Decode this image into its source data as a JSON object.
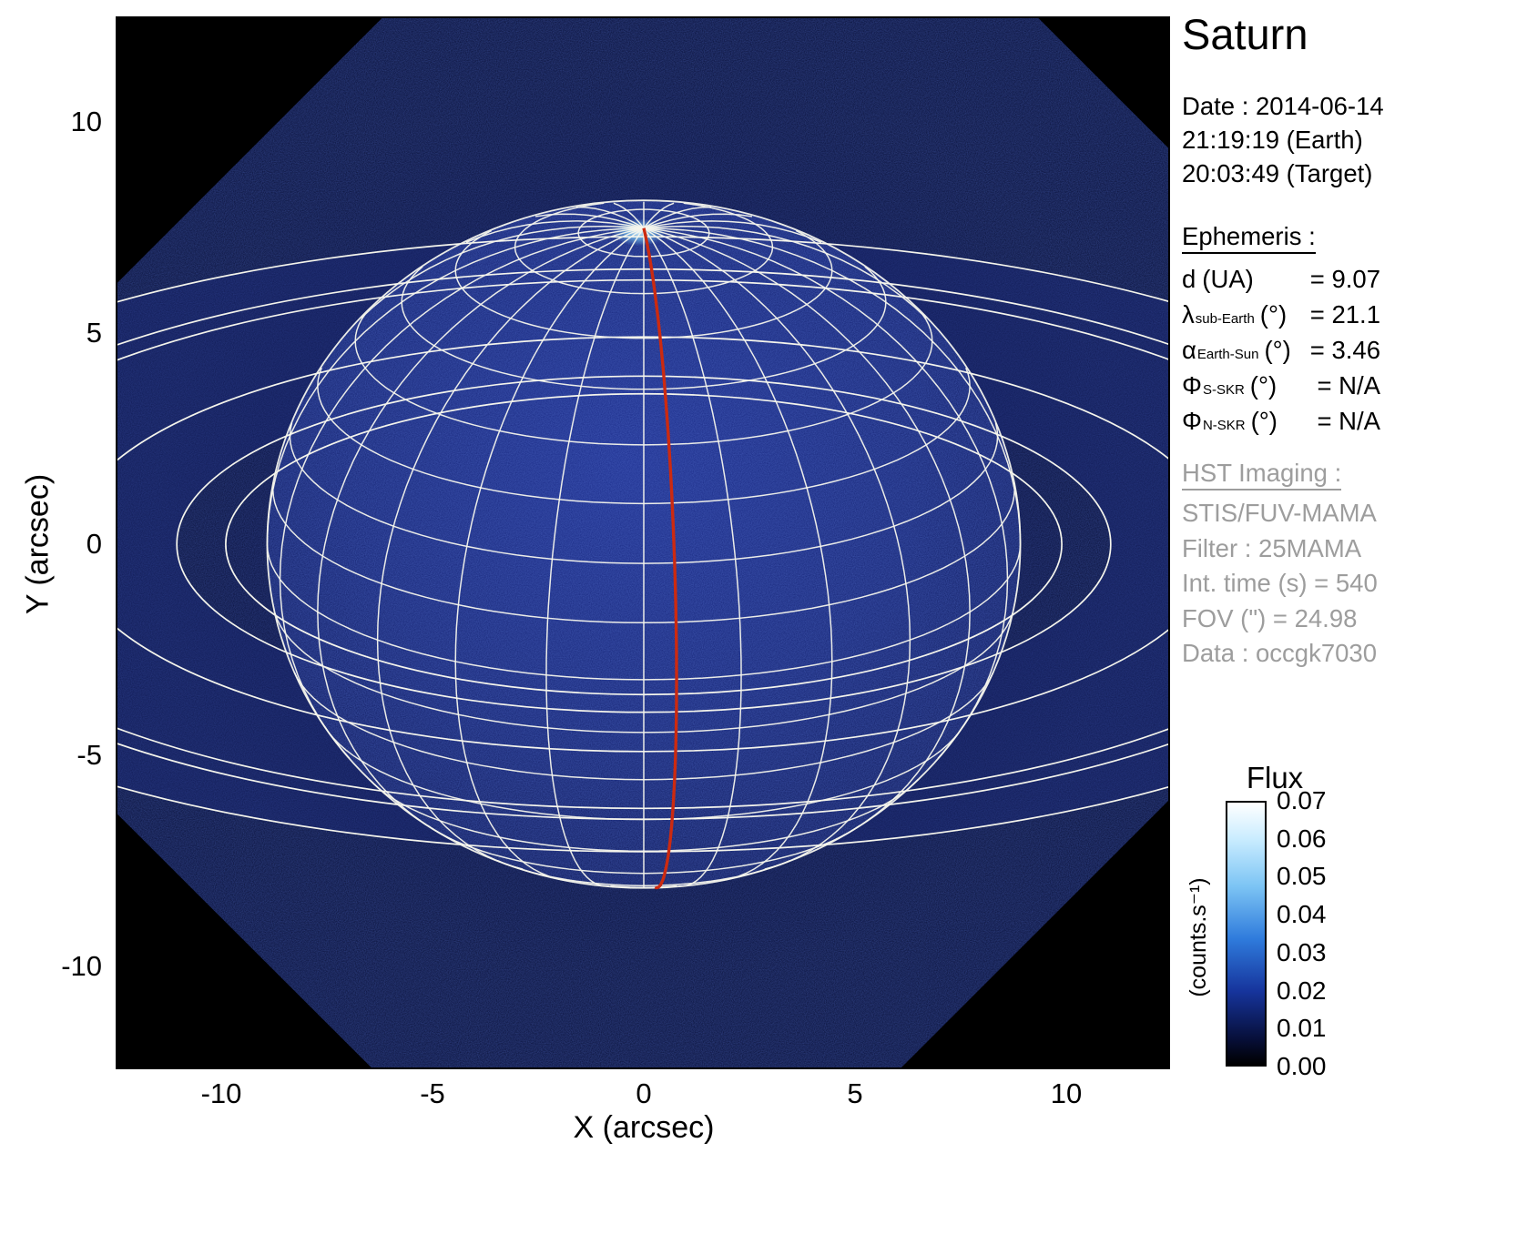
{
  "title": "Saturn",
  "datetime": {
    "date_line": "Date : 2014-06-14",
    "earth_line": "21:19:19 (Earth)",
    "target_line": "20:03:49 (Target)"
  },
  "ephemeris": {
    "heading": "Ephemeris : ",
    "rows": [
      {
        "symbol": "d",
        "sub": "",
        "unit": "(UA)",
        "value": "= 9.07"
      },
      {
        "symbol": "λ",
        "sub": "sub-Earth",
        "unit": "(°)",
        "value": "= 21.1"
      },
      {
        "symbol": "α",
        "sub": "Earth-Sun",
        "unit": "(°)",
        "value": "= 3.46"
      },
      {
        "symbol": "Φ",
        "sub": "S-SKR",
        "unit": "(°)",
        "value": "= N/A"
      },
      {
        "symbol": "Φ",
        "sub": "N-SKR",
        "unit": "(°)",
        "value": "= N/A"
      }
    ]
  },
  "hst": {
    "heading": "HST Imaging : ",
    "lines": [
      "STIS/FUV-MAMA",
      "Filter : 25MAMA",
      "Int. time (s) = 540",
      "FOV (\") = 24.98",
      "Data : occgk7030"
    ]
  },
  "chart_data": {
    "type": "heatmap",
    "description": "HST STIS/FUV-MAMA far-ultraviolet image of Saturn with planetocentric latitude/longitude wireframe grid, ring-edge ellipses and the sub-Earth central meridian overlaid in red",
    "xlabel": "X (arcsec)",
    "ylabel": "Y (arcsec)",
    "xlim": [
      -12.5,
      12.5
    ],
    "ylim": [
      -12.5,
      12.5
    ],
    "x_ticks": [
      "-10",
      "-5",
      "0",
      "5",
      "10"
    ],
    "y_ticks": [
      "10",
      "5",
      "0",
      "-5",
      "-10"
    ],
    "grid_on": true,
    "sub_earth_latitude_deg": 21.1,
    "grid": {
      "latitude_step_deg": 10,
      "longitude_step_deg": 15
    },
    "ring_radii_rs": [
      1.11,
      1.24,
      1.53,
      1.95,
      2.03,
      2.27
    ],
    "grid_color": "#f5f5ec",
    "meridian_color": "#cc2a10",
    "colorbar": {
      "title": "Flux",
      "unit": "(counts.s⁻¹)",
      "min": 0.0,
      "max": 0.07,
      "tick_labels": [
        "0.07",
        "0.06",
        "0.05",
        "0.04",
        "0.03",
        "0.02",
        "0.01",
        "0.00"
      ],
      "gradient": [
        {
          "color": "#ffffff",
          "pos": "0%"
        },
        {
          "color": "#c9ecff",
          "pos": "14%"
        },
        {
          "color": "#7cc4f4",
          "pos": "32%"
        },
        {
          "color": "#2f7bdc",
          "pos": "52%"
        },
        {
          "color": "#16349c",
          "pos": "72%"
        },
        {
          "color": "#070f3a",
          "pos": "90%"
        },
        {
          "color": "#000000",
          "pos": "100%"
        }
      ]
    }
  }
}
